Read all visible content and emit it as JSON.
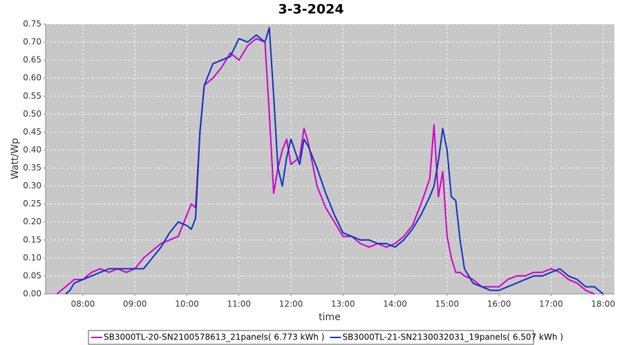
{
  "chart_data": {
    "type": "line",
    "title": "3-3-2024",
    "x_label": "time",
    "y_label": "Watt/Wp",
    "x": [
      "07:30",
      "07:40",
      "07:45",
      "07:50",
      "08:00",
      "08:10",
      "08:20",
      "08:30",
      "08:40",
      "08:50",
      "09:00",
      "09:10",
      "09:20",
      "09:30",
      "09:40",
      "09:50",
      "10:00",
      "10:05",
      "10:10",
      "10:15",
      "10:20",
      "10:30",
      "10:40",
      "10:50",
      "11:00",
      "11:10",
      "11:20",
      "11:30",
      "11:35",
      "11:40",
      "11:45",
      "11:50",
      "11:55",
      "12:00",
      "12:10",
      "12:15",
      "12:20",
      "12:30",
      "12:40",
      "12:50",
      "13:00",
      "13:10",
      "13:20",
      "13:30",
      "13:40",
      "13:50",
      "14:00",
      "14:10",
      "14:20",
      "14:30",
      "14:40",
      "14:45",
      "14:50",
      "14:55",
      "15:00",
      "15:05",
      "15:10",
      "15:15",
      "15:20",
      "15:30",
      "15:40",
      "15:50",
      "16:00",
      "16:10",
      "16:20",
      "16:30",
      "16:40",
      "16:50",
      "17:00",
      "17:10",
      "17:20",
      "17:30",
      "17:40",
      "17:50",
      "18:00"
    ],
    "series": [
      {
        "name": "SB3000TL-20-SN2100578613_21panels( 6.773 kWh )",
        "color": "#cc00cc",
        "values": [
          0.0,
          0.02,
          0.03,
          0.04,
          0.04,
          0.06,
          0.07,
          0.06,
          0.07,
          0.06,
          0.07,
          0.1,
          0.12,
          0.14,
          0.15,
          0.16,
          0.22,
          0.25,
          0.24,
          0.45,
          0.58,
          0.6,
          0.63,
          0.67,
          0.65,
          0.69,
          0.71,
          0.7,
          0.5,
          0.28,
          0.35,
          0.4,
          0.43,
          0.36,
          0.38,
          0.46,
          0.42,
          0.3,
          0.24,
          0.2,
          0.16,
          0.16,
          0.14,
          0.13,
          0.14,
          0.13,
          0.14,
          0.16,
          0.19,
          0.25,
          0.32,
          0.47,
          0.27,
          0.34,
          0.16,
          0.1,
          0.06,
          0.06,
          0.05,
          0.04,
          0.02,
          0.02,
          0.02,
          0.04,
          0.05,
          0.05,
          0.06,
          0.06,
          0.07,
          0.06,
          0.04,
          0.03,
          0.01,
          0.0,
          null
        ]
      },
      {
        "name": "SB3000TL-21-SN2130032031_19panels( 6.507 kWh )",
        "color": "#1030c0",
        "values": [
          null,
          0.0,
          0.01,
          0.03,
          0.04,
          0.05,
          0.06,
          0.07,
          0.07,
          0.07,
          0.07,
          0.07,
          0.1,
          0.13,
          0.17,
          0.2,
          0.19,
          0.18,
          0.21,
          0.45,
          0.58,
          0.64,
          0.65,
          0.66,
          0.71,
          0.7,
          0.72,
          0.7,
          0.74,
          0.55,
          0.35,
          0.3,
          0.38,
          0.43,
          0.36,
          0.43,
          0.41,
          0.35,
          0.28,
          0.22,
          0.17,
          0.16,
          0.15,
          0.15,
          0.14,
          0.14,
          0.13,
          0.15,
          0.18,
          0.22,
          0.27,
          0.3,
          0.37,
          0.46,
          0.4,
          0.27,
          0.26,
          0.15,
          0.07,
          0.03,
          0.02,
          0.01,
          0.01,
          0.02,
          0.03,
          0.04,
          0.05,
          0.05,
          0.06,
          0.07,
          0.05,
          0.04,
          0.02,
          0.02,
          0.0
        ]
      }
    ],
    "xlim": [
      "07:17",
      "18:13"
    ],
    "xticks": [
      "08:00",
      "09:00",
      "10:00",
      "11:00",
      "12:00",
      "13:00",
      "14:00",
      "15:00",
      "16:00",
      "17:00",
      "18:00"
    ],
    "ylim": [
      0,
      0.75
    ],
    "yticks": [
      {
        "value": 0,
        "label": "0.00"
      },
      {
        "value": 0.05,
        "label": "0.05"
      },
      {
        "value": 0.1,
        "label": "0.10"
      },
      {
        "value": 0.15,
        "label": "0.15"
      },
      {
        "value": 0.2,
        "label": "0.20"
      },
      {
        "value": 0.25,
        "label": "0.25"
      },
      {
        "value": 0.3,
        "label": "0.30"
      },
      {
        "value": 0.35,
        "label": "0.35"
      },
      {
        "value": 0.4,
        "label": "0.40"
      },
      {
        "value": 0.45,
        "label": "0.45"
      },
      {
        "value": 0.5,
        "label": "0.50"
      },
      {
        "value": 0.55,
        "label": "0.55"
      },
      {
        "value": 0.6,
        "label": "0.60"
      },
      {
        "value": 0.65,
        "label": "0.65"
      },
      {
        "value": 0.7,
        "label": "0.70"
      },
      {
        "value": 0.75,
        "label": "0.75"
      }
    ],
    "grid": true,
    "legend": "bottom"
  }
}
